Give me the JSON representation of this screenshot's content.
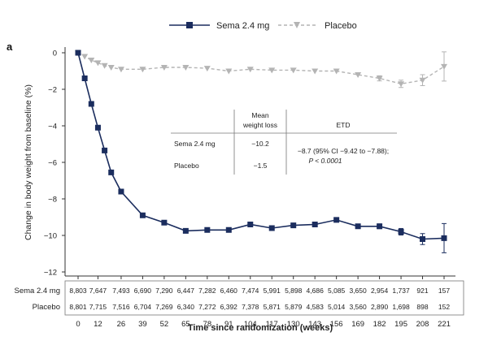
{
  "panel_label": "a",
  "legend": {
    "sema": "Sema 2.4 mg",
    "placebo": "Placebo"
  },
  "inset_table": {
    "col_mean_line1": "Mean",
    "col_mean_line2": "weight loss",
    "col_etd": "ETD",
    "rows": [
      {
        "label": "Sema 2.4 mg",
        "mean": "−10.2"
      },
      {
        "label": "Placebo",
        "mean": "−1.5"
      }
    ],
    "etd_line1": "−8.7 (95% CI −9.42 to −7.88);",
    "etd_line2": "P < 0.0001"
  },
  "at_risk": {
    "rows": [
      {
        "label": "Sema 2.4 mg",
        "values": [
          "8,803",
          "7,647",
          "7,493",
          "6,690",
          "7,290",
          "6,447",
          "7,282",
          "6,460",
          "7,474",
          "5,991",
          "5,898",
          "4,686",
          "5,085",
          "3,650",
          "2,954",
          "1,737",
          "921",
          "157"
        ]
      },
      {
        "label": "Placebo",
        "values": [
          "8,801",
          "7,715",
          "7,516",
          "6,704",
          "7,269",
          "6,340",
          "7,272",
          "6,392",
          "7,378",
          "5,871",
          "5,879",
          "4,583",
          "5,014",
          "3,560",
          "2,890",
          "1,698",
          "898",
          "152"
        ]
      }
    ]
  },
  "colors": {
    "sema": "#1b2d5e",
    "placebo": "#b4b4b4",
    "axis": "#333333",
    "table_line": "#777777"
  },
  "chart_data": {
    "type": "line",
    "xlabel": "Time since randomization (weeks)",
    "ylabel": "Change in body weight from baseline (%)",
    "ylim": [
      -12,
      0
    ],
    "yticks": [
      0,
      -2,
      -4,
      -6,
      -8,
      -10,
      -12
    ],
    "xticks": [
      0,
      12,
      26,
      39,
      52,
      65,
      78,
      91,
      104,
      117,
      130,
      143,
      156,
      169,
      182,
      195,
      208,
      221
    ],
    "grid": false,
    "legend_position": "top",
    "series": [
      {
        "name": "Sema 2.4 mg",
        "marker": "square",
        "x": [
          0,
          4,
          8,
          12,
          16,
          20,
          26,
          39,
          52,
          65,
          78,
          91,
          104,
          117,
          130,
          143,
          156,
          169,
          182,
          195,
          208,
          221
        ],
        "y": [
          0,
          -1.4,
          -2.8,
          -4.1,
          -5.35,
          -6.55,
          -7.6,
          -8.9,
          -9.3,
          -9.75,
          -9.7,
          -9.7,
          -9.4,
          -9.6,
          -9.45,
          -9.4,
          -9.15,
          -9.5,
          -9.5,
          -9.8,
          -10.2,
          -10.15
        ],
        "error": [
          0,
          0.03,
          0.04,
          0.04,
          0.05,
          0.05,
          0.05,
          0.06,
          0.06,
          0.06,
          0.06,
          0.07,
          0.07,
          0.08,
          0.08,
          0.09,
          0.1,
          0.12,
          0.13,
          0.18,
          0.3,
          0.8
        ]
      },
      {
        "name": "Placebo",
        "marker": "triangle-down",
        "x": [
          0,
          4,
          8,
          12,
          16,
          20,
          26,
          39,
          52,
          65,
          78,
          91,
          104,
          117,
          130,
          143,
          156,
          169,
          182,
          195,
          208,
          221
        ],
        "y": [
          0,
          -0.2,
          -0.4,
          -0.55,
          -0.7,
          -0.8,
          -0.9,
          -0.9,
          -0.8,
          -0.8,
          -0.85,
          -1.0,
          -0.9,
          -0.95,
          -0.95,
          -1.0,
          -1.0,
          -1.2,
          -1.4,
          -1.7,
          -1.5,
          -0.75
        ],
        "error": [
          0,
          0.04,
          0.05,
          0.05,
          0.05,
          0.05,
          0.06,
          0.06,
          0.06,
          0.06,
          0.07,
          0.07,
          0.07,
          0.08,
          0.08,
          0.09,
          0.1,
          0.12,
          0.14,
          0.2,
          0.3,
          0.8
        ]
      }
    ]
  }
}
